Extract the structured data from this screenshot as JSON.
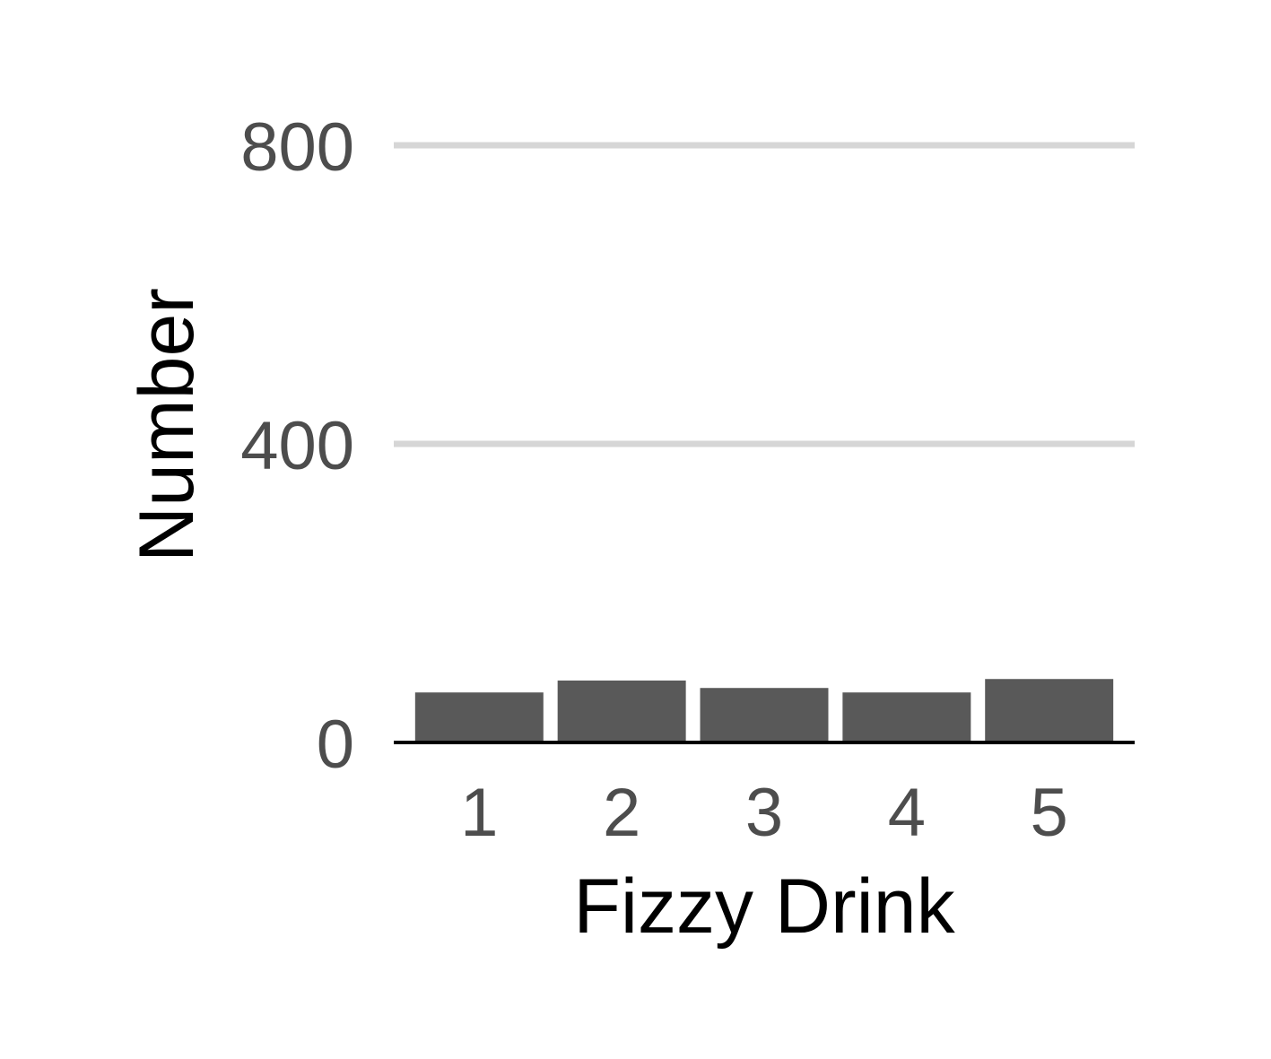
{
  "chart_data": {
    "type": "bar",
    "categories": [
      "1",
      "2",
      "3",
      "4",
      "5"
    ],
    "values": [
      67,
      83,
      73,
      67,
      85
    ],
    "title": "",
    "xlabel": "Fizzy Drink",
    "ylabel": "Number",
    "ylim": [
      0,
      800
    ],
    "yticks": [
      0,
      400,
      800
    ],
    "grid": "horizontal",
    "bar_color": "#595959",
    "grid_color": "#d6d6d6",
    "legend": "none"
  }
}
